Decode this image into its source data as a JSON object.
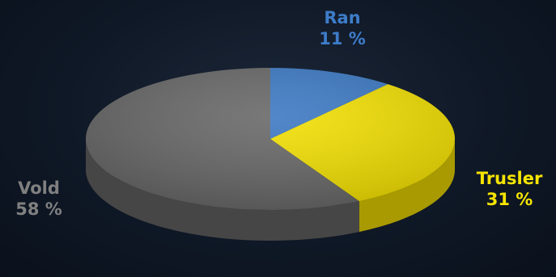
{
  "chart_data": {
    "type": "pie",
    "style": "3d",
    "slices": [
      {
        "label": "Ran",
        "value": 11,
        "display": "11 %",
        "color": "#3a78c3",
        "side": "#2a5a95"
      },
      {
        "label": "Trusler",
        "value": 31,
        "display": "31 %",
        "color": "#f2df00",
        "side": "#a89a00"
      },
      {
        "label": "Vold",
        "value": 58,
        "display": "58 %",
        "color": "#666666",
        "side": "#464646"
      }
    ],
    "label_colors": {
      "Ran": "#3d7cc9",
      "Trusler": "#f5e400",
      "Vold": "#808080"
    }
  }
}
